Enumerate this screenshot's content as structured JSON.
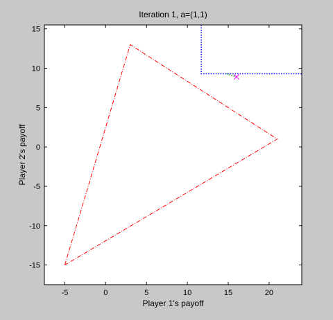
{
  "figure": {
    "background_color": "#c8c8c8",
    "axes_background_color": "#ffffff"
  },
  "chart_data": {
    "type": "line",
    "title": "Iteration 1, a=(1,1)",
    "xlabel": "Player 1's payoff",
    "ylabel": "Player 2's payoff",
    "xlim": [
      -7.5,
      24
    ],
    "ylim": [
      -17.5,
      15.5
    ],
    "xticks": [
      -5,
      0,
      5,
      10,
      15,
      20
    ],
    "yticks": [
      -15,
      -10,
      -5,
      0,
      5,
      10,
      15
    ],
    "xtick_labels": [
      "-5",
      "0",
      "5",
      "10",
      "15",
      "20"
    ],
    "ytick_labels": [
      "-15",
      "-10",
      "-5",
      "0",
      "5",
      "10",
      "15"
    ],
    "grid": false,
    "series": [
      {
        "style": "dash-dot",
        "color": "#ff0000",
        "x": [
          -5,
          3,
          21,
          -5
        ],
        "y": [
          -15,
          13,
          1,
          -15
        ]
      },
      {
        "style": "dotted",
        "color": "#0000ff",
        "x": [
          11.7,
          11.7,
          24
        ],
        "y": [
          15.5,
          9.3,
          9.3
        ]
      },
      {
        "style": "dotted",
        "color": "#00aa00",
        "x": [
          14.8,
          16.0
        ],
        "y": [
          9.3,
          8.9
        ]
      }
    ],
    "markers": [
      {
        "shape": "x",
        "color": "#ff00ff",
        "x": 16.0,
        "y": 8.9
      }
    ]
  }
}
